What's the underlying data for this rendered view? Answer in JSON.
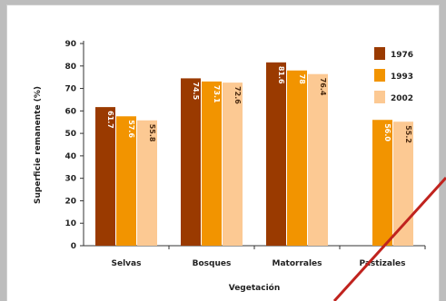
{
  "chart_data": {
    "type": "bar",
    "xlabel": "Vegetación",
    "ylabel": "Superficie remanente (%)",
    "ylim": [
      0,
      90
    ],
    "yticks": [
      0,
      10,
      20,
      30,
      40,
      50,
      60,
      70,
      80,
      90
    ],
    "categories": [
      "Selvas",
      "Bosques",
      "Matorrales",
      "Pastizales"
    ],
    "legend_position": "top-right",
    "grid": false,
    "series": [
      {
        "name": "1976",
        "color": "#9a3a00",
        "label_color": "#ffffff",
        "values": [
          61.7,
          74.5,
          81.6,
          null
        ],
        "labels": [
          "61.7",
          "74.5",
          "81.6",
          ""
        ]
      },
      {
        "name": "1993",
        "color": "#f29400",
        "label_color": "#ffffff",
        "values": [
          57.6,
          73.1,
          78.0,
          56.0
        ],
        "labels": [
          "57.6",
          "73.1",
          "78",
          "56.0"
        ]
      },
      {
        "name": "2002",
        "color": "#fcc993",
        "label_color": "#4a2a10",
        "values": [
          55.8,
          72.6,
          76.4,
          55.2
        ],
        "labels": [
          "55.8",
          "72.6",
          "76.4",
          "55.2"
        ]
      }
    ]
  },
  "annotation": {
    "color": "#c0231e"
  }
}
